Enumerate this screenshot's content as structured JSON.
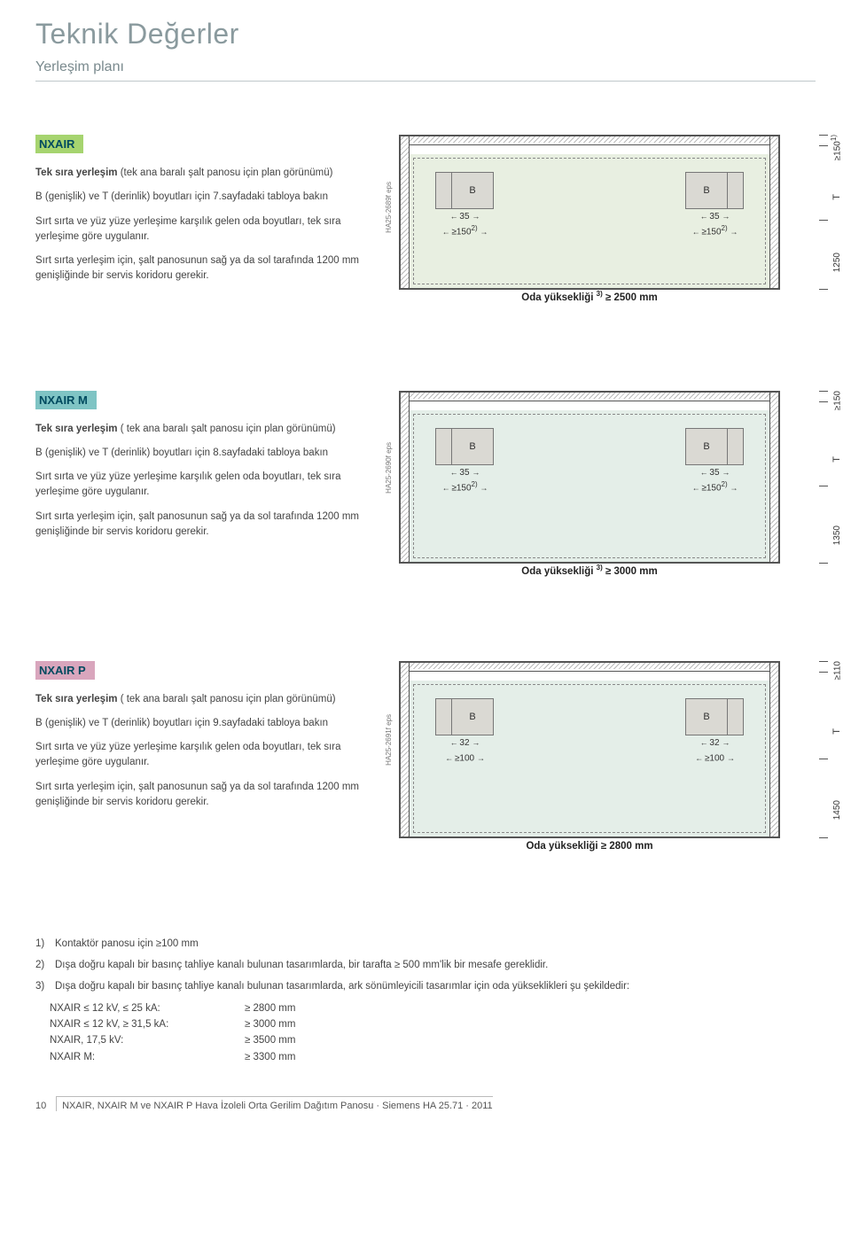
{
  "page": {
    "title": "Teknik Değerler",
    "subtitle": "Yerleşim planı"
  },
  "sections": [
    {
      "tag": "NXAIR",
      "tag_color": "#a6d46f",
      "bold_lead": "Tek sıra yerleşim",
      "lead_rest": " (tek ana baralı şalt panosu için plan görünümü)",
      "p2": "B (genişlik) ve T (derinlik) boyutları için 7.sayfadaki tabloya bakın",
      "p3": "Sırt sırta ve yüz yüze yerleşime karşılık gelen oda boyutları, tek sıra yerleşime göre uygulanır.",
      "p4": "Sırt sırta yerleşim için, şalt panosunun sağ ya da sol tarafında 1200 mm genişliğinde bir servis koridoru gerekir.",
      "diagram": {
        "ha_code": "HA25-2689f eps",
        "room_bg": "#e8efe1",
        "panel_label": "B",
        "dim35_l": "35",
        "dim35_r": "35",
        "dim150_l": "≥150",
        "dim150_r": "≥150",
        "sup_l": "2)",
        "sup_r": "2)",
        "room_height_label": "Oda yüksekliği",
        "room_height_sup": "3)",
        "room_height_val": "≥ 2500 mm",
        "v_top": "≥150",
        "v_top_sup": "1)",
        "v_t": "T",
        "v_bot": "1250",
        "diagram_height": 175
      }
    },
    {
      "tag": "NXAIR M",
      "tag_color": "#7fc4c4",
      "bold_lead": "Tek sıra yerleşim",
      "lead_rest": " ( tek ana baralı şalt panosu için plan görünümü)",
      "p2": "B (genişlik) ve T (derinlik) boyutları için 8.sayfadaki tabloya bakın",
      "p3": "Sırt sırta ve yüz yüze yerleşime karşılık gelen oda boyutları, tek sıra yerleşime göre uygulanır.",
      "p4": "Sırt sırta yerleşim için, şalt panosunun sağ ya da sol tarafında 1200 mm genişliğinde bir servis koridoru gerekir.",
      "diagram": {
        "ha_code": "HA25-2690f eps",
        "room_bg": "#e4eee8",
        "panel_label": "B",
        "dim35_l": "35",
        "dim35_r": "35",
        "dim150_l": "≥150",
        "dim150_r": "≥150",
        "sup_l": "2)",
        "sup_r": "2)",
        "room_height_label": "Oda yüksekliği",
        "room_height_sup": "3)",
        "room_height_val": "≥ 3000 mm",
        "v_top": "≥150",
        "v_top_sup": "",
        "v_t": "T",
        "v_bot": "1350",
        "diagram_height": 195
      }
    },
    {
      "tag": "NXAIR P",
      "tag_color": "#d9a6bd",
      "bold_lead": "Tek sıra yerleşim",
      "lead_rest": " ( tek ana baralı şalt panosu için plan görünümü)",
      "p2": "B (genişlik) ve T (derinlik) boyutları için 9.sayfadaki tabloya bakın",
      "p3": "Sırt sırta ve yüz yüze yerleşime karşılık gelen oda boyutları, tek sıra yerleşime göre uygulanır.",
      "p4": "Sırt sırta yerleşim için, şalt panosunun sağ ya da sol tarafında 1200 mm genişliğinde bir servis koridoru gerekir.",
      "diagram": {
        "ha_code": "HA25-2691f eps",
        "room_bg": "#e4eee8",
        "panel_label": "B",
        "dim35_l": "32",
        "dim35_r": "32",
        "dim150_l": "≥100",
        "dim150_r": "≥100",
        "sup_l": "",
        "sup_r": "",
        "room_height_label": "Oda yüksekliği",
        "room_height_sup": "",
        "room_height_val": "≥ 2800 mm",
        "v_top": "≥110",
        "v_top_sup": "",
        "v_t": "T",
        "v_bot": "1450",
        "diagram_height": 200
      }
    }
  ],
  "footnotes": {
    "items": [
      {
        "num": "1)",
        "text": "Kontaktör panosu için ≥100 mm"
      },
      {
        "num": "2)",
        "text": "Dışa doğru kapalı bir basınç tahliye kanalı bulunan tasarımlarda, bir tarafta ≥ 500 mm'lik bir mesafe gereklidir."
      },
      {
        "num": "3)",
        "text": "Dışa doğru kapalı bir basınç tahliye kanalı bulunan tasarımlarda, ark sönümleyicili tasarımlar için oda yükseklikleri şu şekildedir:"
      }
    ],
    "table": [
      {
        "c1": "NXAIR ≤ 12 kV, ≤ 25 kA:",
        "c2": "≥ 2800 mm"
      },
      {
        "c1": "NXAIR ≤ 12 kV, ≥ 31,5 kA:",
        "c2": "≥ 3000 mm"
      },
      {
        "c1": "NXAIR, 17,5 kV:",
        "c2": "≥ 3500 mm"
      },
      {
        "c1": "NXAIR M:",
        "c2": "≥ 3300 mm"
      }
    ]
  },
  "footer": {
    "page_num": "10",
    "text": "NXAIR, NXAIR M ve NXAIR P Hava İzoleli Orta Gerilim Dağıtım Panosu · Siemens HA 25.71 · 2011"
  }
}
